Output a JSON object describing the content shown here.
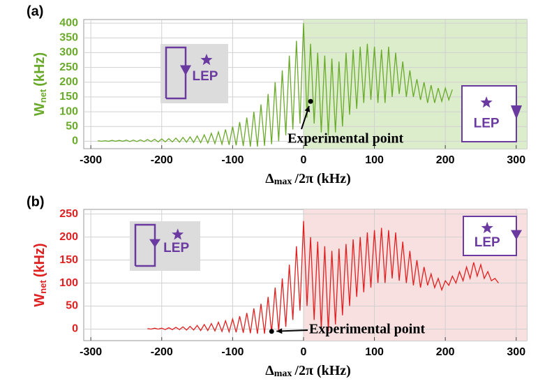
{
  "chart_data": [
    {
      "type": "line",
      "panel_label": "(a)",
      "color": "#6aaa2a",
      "highlight_color": "#dcedcc",
      "ylabel": {
        "main": "W",
        "sub": "net",
        "unit": "(kHz)"
      },
      "xlabel": {
        "main": "Δ",
        "sub": "max",
        "unit": "/2π (kHz)"
      },
      "xlim": [
        -310,
        315
      ],
      "ylim": [
        -25,
        412
      ],
      "xticks": [
        -300,
        -200,
        -100,
        0,
        100,
        200,
        300
      ],
      "yticks": [
        0,
        50,
        100,
        150,
        200,
        250,
        300,
        350,
        400
      ],
      "grid": true,
      "highlight_xlim": [
        0,
        315
      ],
      "x": [
        -290,
        -285,
        -280,
        -275,
        -270,
        -265,
        -260,
        -255,
        -250,
        -245,
        -240,
        -235,
        -230,
        -225,
        -220,
        -215,
        -210,
        -205,
        -200,
        -195,
        -190,
        -185,
        -180,
        -175,
        -170,
        -165,
        -160,
        -155,
        -150,
        -145,
        -140,
        -135,
        -130,
        -125,
        -120,
        -115,
        -110,
        -105,
        -100,
        -95,
        -90,
        -85,
        -80,
        -75,
        -70,
        -65,
        -60,
        -55,
        -50,
        -45,
        -40,
        -35,
        -30,
        -25,
        -20,
        -15,
        -10,
        -5,
        0,
        5,
        10,
        15,
        20,
        25,
        30,
        35,
        40,
        45,
        50,
        55,
        60,
        65,
        70,
        75,
        80,
        85,
        90,
        95,
        100,
        105,
        110,
        115,
        120,
        125,
        130,
        135,
        140,
        145,
        150,
        155,
        160,
        165,
        170,
        175,
        180,
        185,
        190,
        195,
        200,
        205,
        210
      ],
      "values": [
        2,
        0,
        2,
        0,
        3,
        0,
        3,
        0,
        4,
        -1,
        4,
        -1,
        5,
        -1,
        6,
        -1,
        7,
        -2,
        8,
        -2,
        9,
        -2,
        11,
        -3,
        13,
        -3,
        15,
        -4,
        18,
        -5,
        22,
        -6,
        27,
        -8,
        32,
        -10,
        40,
        -12,
        50,
        -14,
        65,
        -16,
        80,
        -18,
        100,
        -18,
        125,
        -15,
        160,
        -10,
        200,
        0,
        240,
        20,
        290,
        40,
        340,
        60,
        400,
        80,
        330,
        60,
        300,
        30,
        290,
        20,
        280,
        30,
        270,
        50,
        300,
        90,
        310,
        110,
        320,
        130,
        330,
        140,
        320,
        130,
        310,
        130,
        320,
        150,
        300,
        160,
        270,
        150,
        240,
        150,
        210,
        140,
        200,
        130,
        190,
        130,
        180,
        135,
        180,
        140,
        175
      ],
      "annotation": {
        "text": "Experimental point",
        "x": 10,
        "y": 135
      },
      "insets": [
        {
          "label": "LEP"
        },
        {
          "label": "LEP"
        }
      ]
    },
    {
      "type": "line",
      "panel_label": "(b)",
      "color": "#e02020",
      "highlight_color": "#f9e0e0",
      "ylabel": {
        "main": "W",
        "sub": "net",
        "unit": "(kHz)"
      },
      "xlabel": {
        "main": "Δ",
        "sub": "max",
        "unit": "/2π (kHz)"
      },
      "xlim": [
        -310,
        315
      ],
      "ylim": [
        -25,
        260
      ],
      "xticks": [
        -300,
        -200,
        -100,
        0,
        100,
        200,
        300
      ],
      "yticks": [
        0,
        50,
        100,
        150,
        200,
        250
      ],
      "grid": true,
      "highlight_xlim": [
        0,
        315
      ],
      "x": [
        -220,
        -215,
        -210,
        -205,
        -200,
        -195,
        -190,
        -185,
        -180,
        -175,
        -170,
        -165,
        -160,
        -155,
        -150,
        -145,
        -140,
        -135,
        -130,
        -125,
        -120,
        -115,
        -110,
        -105,
        -100,
        -95,
        -90,
        -85,
        -80,
        -75,
        -70,
        -65,
        -60,
        -55,
        -50,
        -45,
        -40,
        -35,
        -30,
        -25,
        -20,
        -15,
        -10,
        -5,
        0,
        5,
        10,
        15,
        20,
        25,
        30,
        35,
        40,
        45,
        50,
        55,
        60,
        65,
        70,
        75,
        80,
        85,
        90,
        95,
        100,
        105,
        110,
        115,
        120,
        125,
        130,
        135,
        140,
        145,
        150,
        155,
        160,
        165,
        170,
        175,
        180,
        185,
        190,
        195,
        200,
        205,
        210,
        215,
        220,
        225,
        230,
        235,
        240,
        245,
        250,
        255,
        260,
        265,
        270,
        275
      ],
      "values": [
        1,
        0,
        2,
        0,
        2,
        -1,
        3,
        -1,
        4,
        -1,
        5,
        -2,
        6,
        -2,
        8,
        -3,
        10,
        -3,
        12,
        -4,
        15,
        -5,
        18,
        -6,
        22,
        -7,
        28,
        -8,
        35,
        -9,
        45,
        -10,
        55,
        -10,
        70,
        -8,
        90,
        -5,
        110,
        5,
        140,
        20,
        180,
        40,
        235,
        50,
        200,
        20,
        190,
        0,
        180,
        -5,
        170,
        10,
        175,
        30,
        185,
        50,
        195,
        70,
        200,
        80,
        210,
        90,
        215,
        100,
        220,
        100,
        215,
        110,
        210,
        105,
        190,
        100,
        170,
        95,
        150,
        90,
        135,
        95,
        120,
        90,
        110,
        85,
        105,
        95,
        115,
        100,
        125,
        105,
        135,
        110,
        145,
        115,
        140,
        110,
        125,
        105,
        110,
        100
      ],
      "annotation": {
        "text": "Experimental point",
        "x": -45,
        "y": -5
      },
      "insets": [
        {
          "label": "LEP"
        },
        {
          "label": "LEP"
        }
      ]
    }
  ]
}
